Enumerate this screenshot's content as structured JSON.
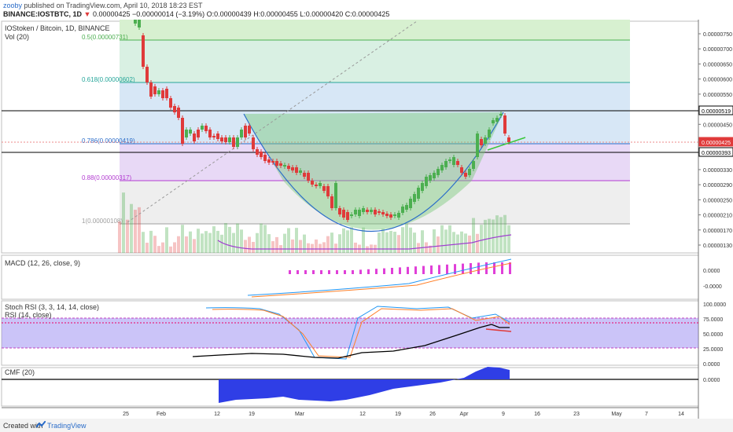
{
  "header": {
    "user": "zooby",
    "publish_text": " published on TradingView.com, April 10, 2018 18:23 EST",
    "symbol_line": "BINANCE:IOSTBTC, 1D",
    "last_price": "0.00000425",
    "change": "−0.00000014 (−3.19%)",
    "ohlc": "O:0.00000439 H:0.00000455 L:0.00000420 C:0.00000425"
  },
  "panes": {
    "main_title": "IOStoken / Bitcoin, 1D, BINANCE",
    "vol_label": "Vol (20)",
    "macd_label": "MACD (12, 26, close, 9)",
    "stoch_label": "Stoch RSI (3, 3, 14, 14, close)",
    "rsi_label": "RSI (14, close)",
    "cmf_label": "CMF (20)"
  },
  "fib_levels": [
    {
      "label": "0.5(0.00000731)",
      "color": "#4caf50"
    },
    {
      "label": "0.618(0.00000602)",
      "color": "#26a69a"
    },
    {
      "label": "0.786(0.00000419)",
      "color": "#2a6cc9"
    },
    {
      "label": "0.88(0.00000317)",
      "color": "#b23ad1"
    },
    {
      "label": "1(0.00000108)",
      "color": "#9e9e9e"
    }
  ],
  "price_axis": [
    "0.00000750",
    "0.00000700",
    "0.00000650",
    "0.00000600",
    "0.00000550",
    "0.00000500",
    "0.00000450",
    "0.00000410",
    "0.00000370",
    "0.00000330",
    "0.00000290",
    "0.00000250",
    "0.00000210",
    "0.00000170",
    "0.00000130"
  ],
  "price_tags": [
    {
      "label": "0.00000519",
      "bg": "#ffffff",
      "fg": "#000000",
      "border": "#000000"
    },
    {
      "label": "0.00000425",
      "bg": "#e03a3a",
      "fg": "#ffffff",
      "border": "#e03a3a"
    },
    {
      "label": "0.00000393",
      "bg": "#ffffff",
      "fg": "#000000",
      "border": "#000000"
    }
  ],
  "macd_axis": [
    "0.0000",
    "-0.0000"
  ],
  "rsi_axis": [
    "100.0000",
    "75.0000",
    "50.0000",
    "25.0000",
    "0.0000"
  ],
  "cmf_axis": [
    "0.0000"
  ],
  "time_axis": [
    "25",
    "Feb",
    "12",
    "19",
    "Mar",
    "12",
    "19",
    "26",
    "Apr",
    "9",
    "16",
    "23",
    "May",
    "7",
    "14"
  ],
  "footer": {
    "created": "Created with",
    "brand": "TradingView"
  },
  "colors": {
    "up": "#4caf50",
    "down": "#e03a3a",
    "macd_hist": "#e040d8",
    "cmf": "#2f3ee6",
    "rsi_band": "#8c7cf0"
  }
}
